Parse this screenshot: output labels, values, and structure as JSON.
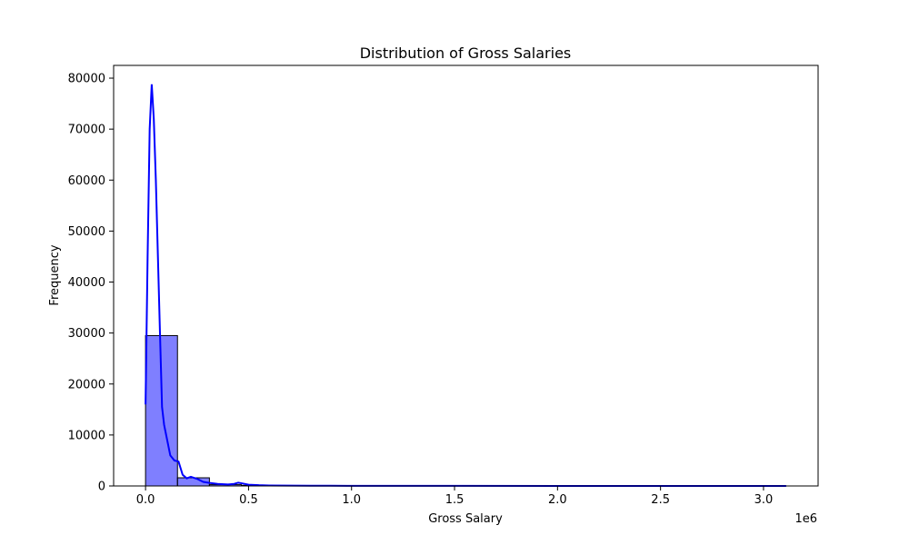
{
  "chart_data": {
    "type": "bar",
    "title": "Distribution of Gross Salaries",
    "xlabel": "Gross Salary",
    "ylabel": "Frequency",
    "x_offset_label": "1e6",
    "xlim": [
      -0.155,
      3.265
    ],
    "ylim": [
      0,
      82500
    ],
    "xticks": [
      0.0,
      0.5,
      1.0,
      1.5,
      2.0,
      2.5,
      3.0
    ],
    "xtick_labels": [
      "0.0",
      "0.5",
      "1.0",
      "1.5",
      "2.0",
      "2.5",
      "3.0"
    ],
    "yticks": [
      0,
      10000,
      20000,
      30000,
      40000,
      50000,
      60000,
      70000,
      80000
    ],
    "ytick_labels": [
      "0",
      "10000",
      "20000",
      "30000",
      "40000",
      "50000",
      "60000",
      "70000",
      "80000"
    ],
    "grid": false,
    "bar_color": "#0000ff",
    "bar_opacity": 0.5,
    "bar_edge_color": "#000000",
    "kde_color": "#0000ff",
    "bins": [
      {
        "x0": 0.0,
        "x1": 0.155,
        "count": 29500
      },
      {
        "x0": 0.155,
        "x1": 0.31,
        "count": 1600
      },
      {
        "x0": 0.31,
        "x1": 0.465,
        "count": 250
      },
      {
        "x0": 0.465,
        "x1": 0.62,
        "count": 120
      },
      {
        "x0": 0.62,
        "x1": 0.775,
        "count": 60
      },
      {
        "x0": 0.775,
        "x1": 0.93,
        "count": 30
      },
      {
        "x0": 0.93,
        "x1": 1.085,
        "count": 15
      },
      {
        "x0": 1.085,
        "x1": 1.24,
        "count": 8
      },
      {
        "x0": 1.24,
        "x1": 1.395,
        "count": 5
      },
      {
        "x0": 1.395,
        "x1": 1.55,
        "count": 4
      },
      {
        "x0": 1.55,
        "x1": 1.705,
        "count": 3
      },
      {
        "x0": 1.705,
        "x1": 1.86,
        "count": 2
      },
      {
        "x0": 1.86,
        "x1": 2.015,
        "count": 2
      },
      {
        "x0": 2.015,
        "x1": 2.17,
        "count": 1
      },
      {
        "x0": 2.17,
        "x1": 2.325,
        "count": 1
      },
      {
        "x0": 2.325,
        "x1": 2.48,
        "count": 1
      },
      {
        "x0": 2.48,
        "x1": 2.635,
        "count": 1
      },
      {
        "x0": 2.635,
        "x1": 2.79,
        "count": 1
      },
      {
        "x0": 2.79,
        "x1": 2.945,
        "count": 1
      },
      {
        "x0": 2.945,
        "x1": 3.11,
        "count": 1
      }
    ],
    "kde": {
      "x": [
        0.0,
        0.01,
        0.02,
        0.03,
        0.04,
        0.05,
        0.06,
        0.07,
        0.08,
        0.09,
        0.1,
        0.12,
        0.14,
        0.16,
        0.18,
        0.2,
        0.22,
        0.25,
        0.28,
        0.31,
        0.35,
        0.4,
        0.43,
        0.45,
        0.47,
        0.5,
        0.55,
        0.6,
        0.7,
        0.8,
        0.9,
        1.0,
        1.2,
        1.5,
        2.0,
        2.5,
        3.0,
        3.11
      ],
      "y": [
        16000,
        45000,
        70000,
        78800,
        72000,
        60000,
        45000,
        30000,
        15500,
        12000,
        10000,
        6000,
        5000,
        4800,
        2200,
        1500,
        1800,
        1400,
        800,
        600,
        400,
        300,
        400,
        650,
        500,
        250,
        150,
        100,
        70,
        50,
        40,
        30,
        20,
        20,
        10,
        10,
        5,
        5
      ]
    }
  }
}
